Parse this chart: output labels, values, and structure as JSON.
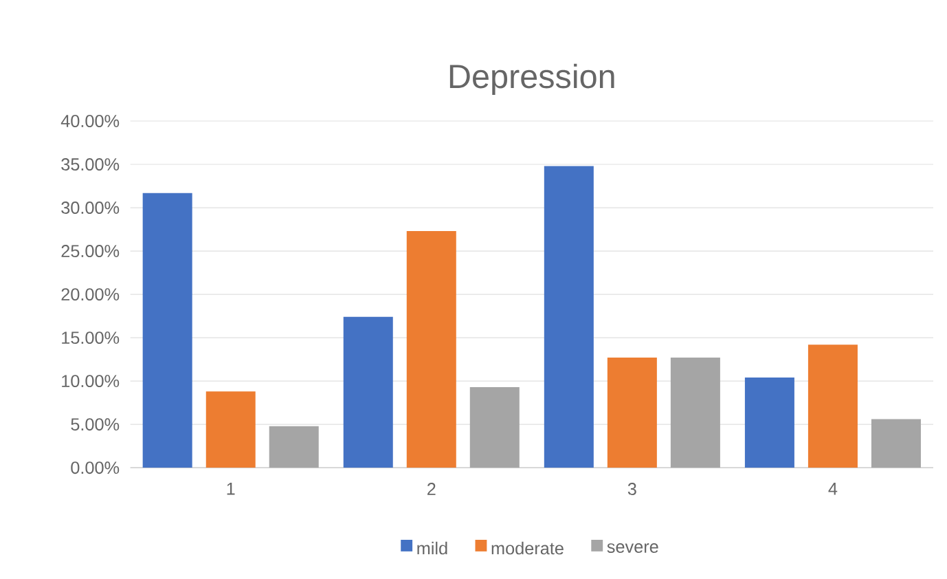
{
  "chart_data": {
    "type": "bar",
    "title": "Depression",
    "categories": [
      "1",
      "2",
      "3",
      "4"
    ],
    "series": [
      {
        "name": "mild",
        "color": "#4472c4",
        "values": [
          31.7,
          17.4,
          34.8,
          10.4
        ]
      },
      {
        "name": "moderate",
        "color": "#ed7d31",
        "values": [
          8.8,
          27.3,
          12.7,
          14.2
        ]
      },
      {
        "name": "severe",
        "color": "#a5a5a5",
        "values": [
          4.8,
          9.3,
          12.7,
          5.6
        ]
      }
    ],
    "ylim": [
      0,
      40
    ],
    "yticks": [
      {
        "value": 0,
        "label": "0.00%"
      },
      {
        "value": 5,
        "label": "5.00%"
      },
      {
        "value": 10,
        "label": "10.00%"
      },
      {
        "value": 15,
        "label": "15.00%"
      },
      {
        "value": 20,
        "label": "20.00%"
      },
      {
        "value": 25,
        "label": "25.00%"
      },
      {
        "value": 30,
        "label": "30.00%"
      },
      {
        "value": 35,
        "label": "35.00%"
      },
      {
        "value": 40,
        "label": "40.00%"
      }
    ],
    "grid": "y",
    "legend": "bottom"
  }
}
